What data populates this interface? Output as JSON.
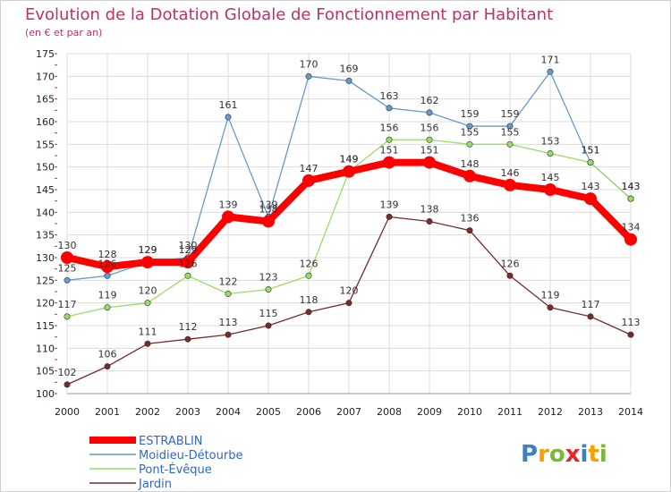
{
  "chart_data": {
    "type": "line",
    "title": "Evolution de la Dotation Globale de Fonctionnement par Habitant",
    "subtitle": "(en € et par an)",
    "x": [
      "2000",
      "2001",
      "2002",
      "2003",
      "2004",
      "2005",
      "2006",
      "2007",
      "2008",
      "2009",
      "2010",
      "2011",
      "2012",
      "2013",
      "2014"
    ],
    "ylim": [
      100,
      175
    ],
    "yticks": [
      100,
      105,
      110,
      115,
      120,
      125,
      130,
      135,
      140,
      145,
      150,
      155,
      160,
      165,
      170,
      175
    ],
    "grid": true,
    "legend_position": "bottom-left",
    "series": [
      {
        "name": "ESTRABLIN",
        "color": "#ff0000",
        "values": [
          130,
          128,
          129,
          129,
          139,
          138,
          147,
          149,
          151,
          151,
          148,
          146,
          145,
          143,
          134
        ]
      },
      {
        "name": "Moidieu-Détourbe",
        "color": "#6699cc",
        "values": [
          125,
          126,
          129,
          130,
          161,
          139,
          170,
          169,
          163,
          162,
          159,
          159,
          171,
          151,
          143
        ]
      },
      {
        "name": "Pont-Évêque",
        "color": "#99dd66",
        "values": [
          117,
          119,
          120,
          126,
          122,
          123,
          126,
          149,
          156,
          156,
          155,
          155,
          153,
          151,
          143
        ]
      },
      {
        "name": "Jardin",
        "color": "#7a2a2a",
        "values": [
          102,
          106,
          111,
          112,
          113,
          115,
          118,
          120,
          139,
          138,
          136,
          126,
          119,
          117,
          113
        ]
      }
    ]
  },
  "brand": {
    "letters": [
      "P",
      "r",
      "o",
      "x",
      "i",
      "t",
      "i"
    ],
    "colors": [
      "#3b82c4",
      "#f5a000",
      "#7ab83a",
      "#e8262a",
      "#3b82c4",
      "#f5a000",
      "#7ab83a"
    ]
  }
}
